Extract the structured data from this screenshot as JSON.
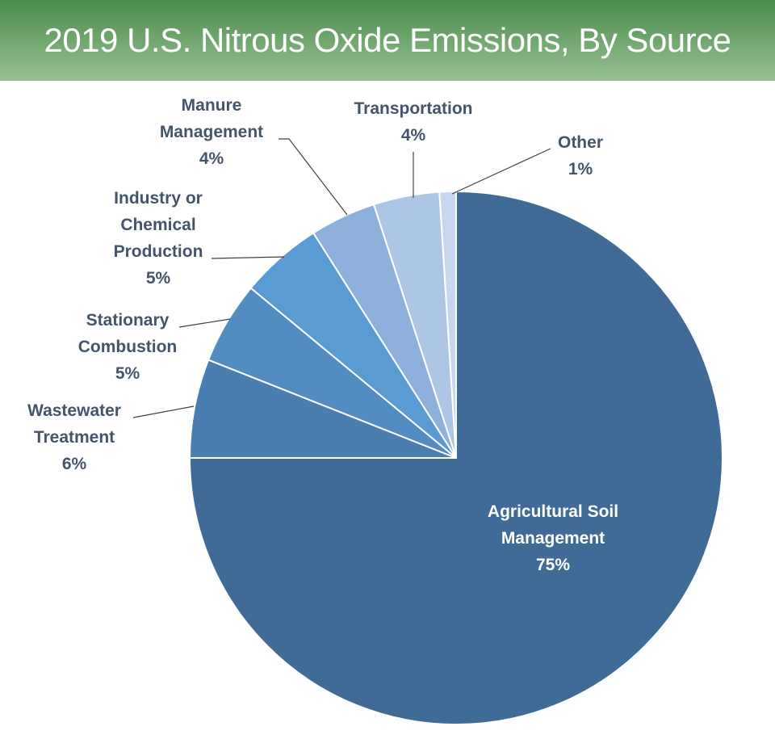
{
  "chart_data": {
    "type": "pie",
    "title": "2019 U.S. Nitrous Oxide Emissions, By Source",
    "slices": [
      {
        "label": [
          "Agricultural Soil",
          "Management"
        ],
        "value": 75,
        "value_label": "75%",
        "color": "#3f6b96"
      },
      {
        "label": [
          "Wastewater",
          "Treatment"
        ],
        "value": 6,
        "value_label": "6%",
        "color": "#4a7eb0"
      },
      {
        "label": [
          "Stationary",
          "Combustion"
        ],
        "value": 5,
        "value_label": "5%",
        "color": "#528cc2"
      },
      {
        "label": [
          "Industry or",
          "Chemical",
          "Production"
        ],
        "value": 5,
        "value_label": "5%",
        "color": "#5a9bd4"
      },
      {
        "label": [
          "Manure",
          "Management"
        ],
        "value": 4,
        "value_label": "4%",
        "color": "#8db0dc"
      },
      {
        "label": [
          "Transportation"
        ],
        "value": 4,
        "value_label": "4%",
        "color": "#adc6e6"
      },
      {
        "label": [
          "Other"
        ],
        "value": 1,
        "value_label": "1%",
        "color": "#c6d7ee"
      }
    ],
    "start_angle": "12 o'clock",
    "direction": "clockwise",
    "legend": "none"
  }
}
